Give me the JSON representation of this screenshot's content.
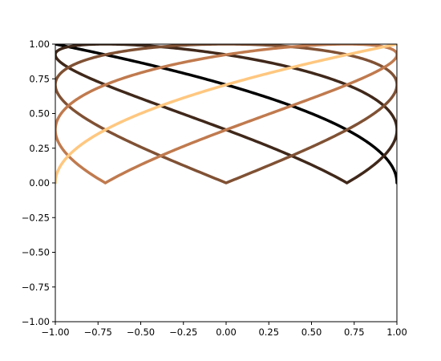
{
  "chart_data": {
    "type": "line",
    "title": "",
    "xlabel": "",
    "ylabel": "",
    "xlim": [
      -1.0,
      1.0
    ],
    "ylim": [
      -1.0,
      1.0
    ],
    "grid": false,
    "legend": "none",
    "x_ticks": [
      "−1.00",
      "−0.75",
      "−0.50",
      "−0.25",
      "0.00",
      "0.25",
      "0.50",
      "0.75",
      "1.00"
    ],
    "x_tick_values": [
      -1.0,
      -0.75,
      -0.5,
      -0.25,
      0.0,
      0.25,
      0.5,
      0.75,
      1.0
    ],
    "y_ticks": [
      "−1.00",
      "−0.75",
      "−0.50",
      "−0.25",
      "0.00",
      "0.25",
      "0.50",
      "0.75",
      "1.00"
    ],
    "y_tick_values": [
      -1.0,
      -0.75,
      -0.5,
      -0.25,
      0.0,
      0.25,
      0.5,
      0.75,
      1.0
    ],
    "curve_form": "x = cos(t + phase), y = sin(t / 2), t from 0 to 2π",
    "series": [
      {
        "phase": 0.0,
        "color": "#000000"
      },
      {
        "phase": 0.7854,
        "color": "#40281a"
      },
      {
        "phase": 1.5708,
        "color": "#805134"
      },
      {
        "phase": 2.3562,
        "color": "#c07a4e"
      },
      {
        "phase": 3.1416,
        "color": "#ffc77f"
      }
    ]
  }
}
